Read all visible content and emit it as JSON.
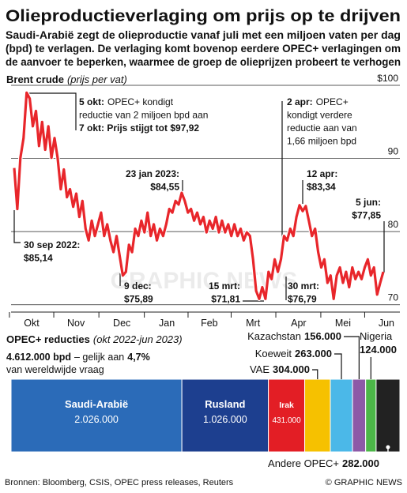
{
  "title": "Olieproductieverlaging om prijs op te drijven",
  "subtitle": [
    "Saudi-Arabië zegt de olieproductie vanaf juli met een miljoen vaten per dag",
    "(bpd) te verlagen. De verlaging komt bovenop eerdere OPEC+ verlagingen om",
    "de aanvoer te beperken, waarmee de groep de olieprijzen probeert te verhogen"
  ],
  "watermark": "GRAPHIC NEWS",
  "chart_data": [
    {
      "type": "line",
      "title": "Brent crude",
      "subtitle": "(prijs per vat)",
      "color": "#e8262b",
      "values": [
        88.7,
        83.1,
        90.1,
        92.8,
        99,
        98.2,
        94.4,
        96.5,
        91.7,
        95,
        91.2,
        94.4,
        90.1,
        92.8,
        90.1,
        85.8,
        88.5,
        84.7,
        85.8,
        83.4,
        85.2,
        82,
        84.2,
        80.4,
        78.8,
        81.5,
        79.4,
        81,
        82.6,
        79.4,
        81,
        78.8,
        77.2,
        79.4,
        76.7,
        74,
        74.5,
        78.2,
        77.2,
        80.4,
        79.4,
        81.5,
        79.9,
        82.6,
        79.4,
        81,
        78.8,
        80.4,
        79.4,
        81,
        83.1,
        82.6,
        84.2,
        83.7,
        85.3,
        84.2,
        82.6,
        83.1,
        81.5,
        82.6,
        81,
        82,
        79.9,
        81.5,
        80.4,
        82,
        79.9,
        81.5,
        79.9,
        81,
        79.4,
        81,
        79.4,
        80.4,
        78.8,
        79.9,
        79.4,
        76.2,
        71.9,
        70.8,
        72.4,
        70.8,
        74.5,
        73.5,
        76.2,
        74.5,
        76.2,
        79.4,
        78.8,
        80.4,
        79.4,
        82,
        83.6,
        82.8,
        83.5,
        81.5,
        79.4,
        80.4,
        77.2,
        75.1,
        76.2,
        73,
        74,
        70.8,
        74,
        75.1,
        73,
        74.5,
        72.4,
        75.1,
        73.5,
        74.5,
        73.5,
        75.1,
        76.2,
        74,
        75.1,
        71.4,
        73,
        74.5
      ],
      "xlim": [
        0,
        119
      ],
      "xticks": [
        {
          "value": 5.6,
          "label": "Okt"
        },
        {
          "value": 19.9,
          "label": "Nov"
        },
        {
          "value": 34.7,
          "label": "Dec"
        },
        {
          "value": 49.2,
          "label": "Jan"
        },
        {
          "value": 62.9,
          "label": "Feb"
        },
        {
          "value": 77,
          "label": "Mrt"
        },
        {
          "value": 91.7,
          "label": "Apr"
        },
        {
          "value": 106,
          "label": "Mei"
        },
        {
          "value": 120,
          "label": "Jun"
        }
      ],
      "ylim": [
        69,
        100
      ],
      "yticks": [
        70,
        80,
        90,
        {
          "value": 100,
          "label": "$100"
        }
      ],
      "grid": true,
      "annotations": [
        {
          "lines": [
            [
              "5 okt:",
              "OPEC+ kondigt"
            ],
            [
              "reductie van 2 miljoen bpd aan"
            ],
            [
              "7 okt: Prijs stijgt tot $97,92"
            ]
          ]
        },
        {
          "lines": [
            [
              "2 apr:",
              "OPEC+"
            ],
            [
              "kondigt verdere"
            ],
            [
              "reductie aan van"
            ],
            [
              "1,66 miljoen bpd"
            ]
          ]
        },
        {
          "lines": [
            [
              "23 jan 2023:"
            ],
            [
              "$84,55"
            ]
          ]
        },
        {
          "lines": [
            [
              "12 apr:"
            ],
            [
              "$83,34"
            ]
          ]
        },
        {
          "lines": [
            [
              "5 jun:"
            ],
            [
              "$77,85"
            ]
          ]
        },
        {
          "lines": [
            [
              "30 sep 2022:"
            ],
            [
              "$85,14"
            ]
          ]
        },
        {
          "lines": [
            [
              "9 dec:"
            ],
            [
              "$75,89"
            ]
          ]
        },
        {
          "lines": [
            [
              "15 mrt:"
            ],
            [
              "$71,81"
            ]
          ]
        },
        {
          "lines": [
            [
              "30 mrt:"
            ],
            [
              "$76,79"
            ]
          ]
        }
      ]
    },
    {
      "type": "stacked-bar",
      "title": "OPEC+ reducties",
      "subtitle": "(okt 2022-jun 2023)",
      "total": "4.612.000 bpd",
      "total_text": "– gelijk aan",
      "share": "4,7%",
      "total_note": "van wereldwijde vraag",
      "categories": [
        "Saudi-Arabië",
        "Rusland",
        "Irak",
        "VAE",
        "Koeweit",
        "Kazachstan",
        "Nigeria",
        "Andere OPEC+"
      ],
      "values": [
        2026000,
        1026000,
        431000,
        304000,
        263000,
        156000,
        124000,
        282000
      ],
      "value_labels": [
        "2.026.000",
        "1.026.000",
        "431.000",
        "304.000",
        "263.000",
        "156.000",
        "124.000",
        "282.000"
      ],
      "colors": [
        "#2b6bb8",
        "#1d3f8f",
        "#e31e25",
        "#f6c100",
        "#4bb8e8",
        "#8d5aa7",
        "#4cb748",
        "#222222"
      ]
    }
  ],
  "source": "Bronnen: Bloomberg, CSIS, OPEC press releases, Reuters",
  "credit": "© GRAPHIC NEWS"
}
